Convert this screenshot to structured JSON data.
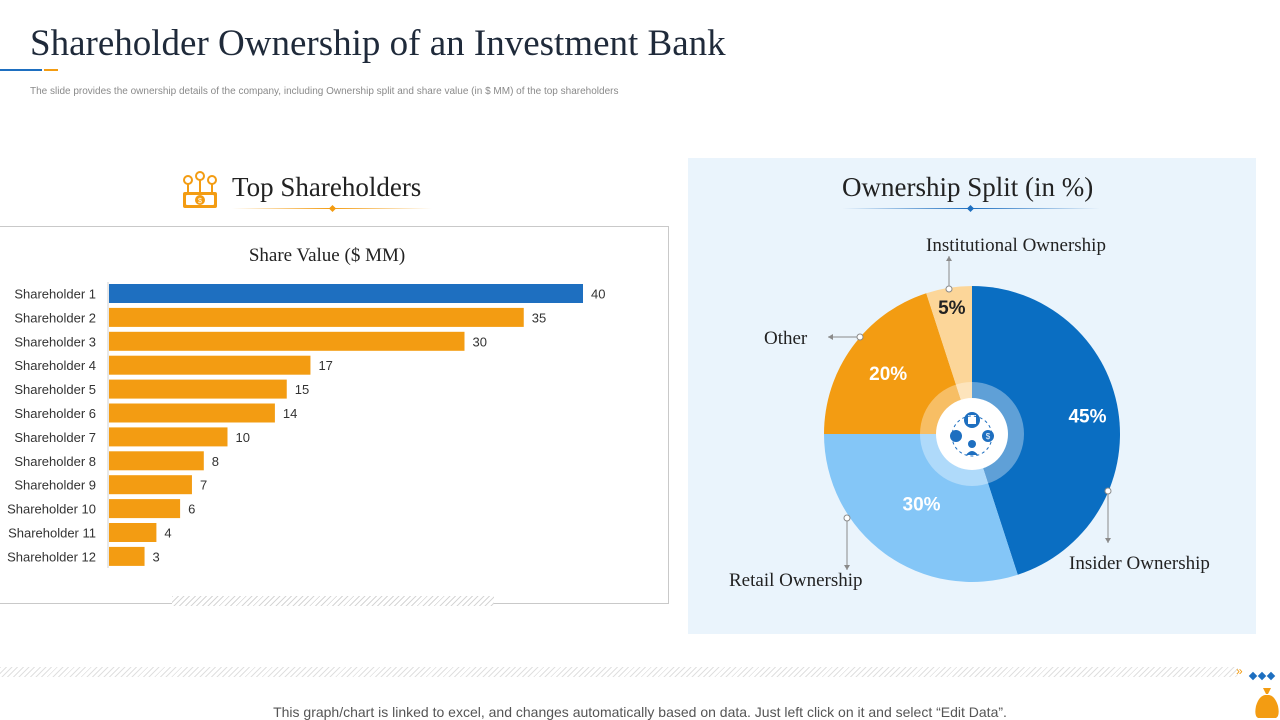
{
  "header": {
    "title": "Shareholder Ownership of an Investment Bank",
    "subtitle": "The slide provides the ownership details of the company, including Ownership split and share value (in $ MM) of the top shareholders"
  },
  "left_panel": {
    "heading": "Top Shareholders",
    "icon": "money-coins-icon"
  },
  "right_panel": {
    "heading": "Ownership Split (in %)",
    "center_icon": "bank-network-icon"
  },
  "colors": {
    "orange": "#f39c12",
    "blue": "#1e6fc0",
    "dark_blue": "#0a6ec2",
    "light_blue": "#84c6f7",
    "pale_orange": "#fcd699"
  },
  "chart_data": [
    {
      "type": "bar",
      "orientation": "horizontal",
      "title": "Share Value ($ MM)",
      "categories": [
        "Shareholder 1",
        "Shareholder 2",
        "Shareholder 3",
        "Shareholder 4",
        "Shareholder 5",
        "Shareholder 6",
        "Shareholder 7",
        "Shareholder 8",
        "Shareholder 9",
        "Shareholder 10",
        "Shareholder 11",
        "Shareholder 12"
      ],
      "values": [
        40,
        35,
        30,
        17,
        15,
        14,
        10,
        8,
        7,
        6,
        4,
        3
      ],
      "xlim": [
        0,
        40
      ],
      "grid": false,
      "highlight_index": 0
    },
    {
      "type": "pie",
      "title": "Ownership Split (in %)",
      "slices": [
        {
          "label": "Insider Ownership",
          "value": 45,
          "display": "45%"
        },
        {
          "label": "Retail Ownership",
          "value": 30,
          "display": "30%"
        },
        {
          "label": "Other",
          "value": 20,
          "display": "20%"
        },
        {
          "label": "Institutional Ownership",
          "value": 5,
          "display": "5%"
        }
      ]
    }
  ],
  "footer": {
    "note": "This graph/chart is linked to excel,  and changes automatically based on data. Just left click on it and select “Edit Data”."
  }
}
